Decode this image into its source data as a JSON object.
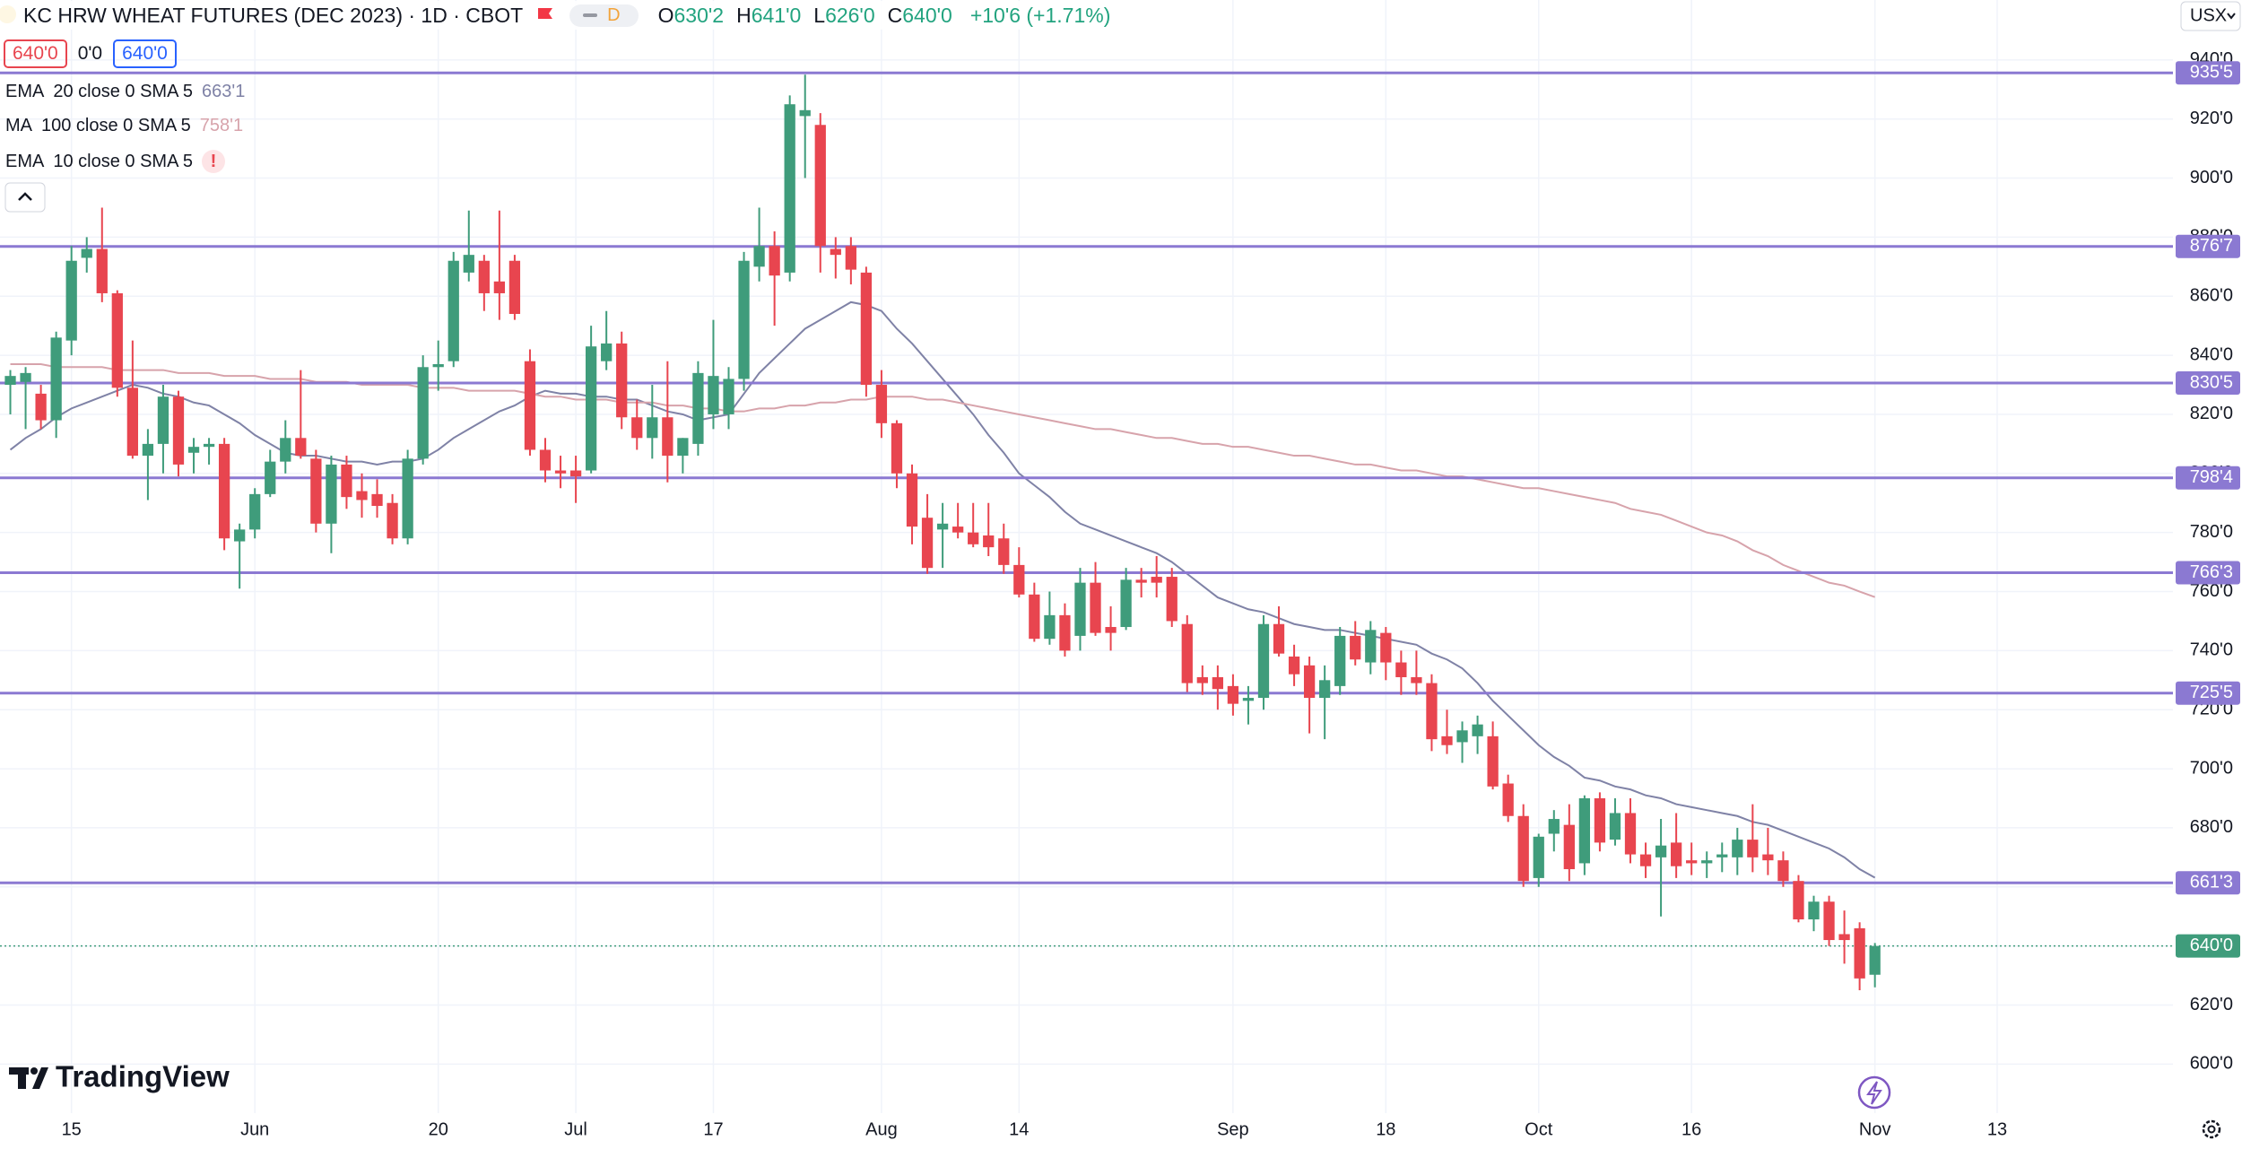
{
  "header": {
    "title": "KC HRW WHEAT FUTURES (DEC 2023) · 1D · CBOT",
    "interval_badge": "D",
    "ohlc": [
      {
        "key": "O",
        "value": "630'2"
      },
      {
        "key": "H",
        "value": "641'0"
      },
      {
        "key": "L",
        "value": "626'0"
      },
      {
        "key": "C",
        "value": "640'0"
      }
    ],
    "change": "+10'6 (+1.71%)",
    "sell_price": "640'0",
    "spread": "0'0",
    "buy_price": "640'0",
    "currency": "USX"
  },
  "footer": {
    "logo": "TradingView"
  },
  "chart_data": {
    "type": "candlestick",
    "categories": [
      null,
      null,
      null,
      null,
      "15",
      null,
      null,
      null,
      null,
      null,
      null,
      null,
      null,
      null,
      null,
      null,
      "Jun",
      null,
      null,
      null,
      null,
      null,
      null,
      null,
      null,
      null,
      null,
      null,
      "20",
      null,
      null,
      null,
      null,
      null,
      null,
      null,
      null,
      "Jul",
      null,
      null,
      null,
      null,
      null,
      null,
      null,
      null,
      "17",
      null,
      null,
      null,
      null,
      null,
      null,
      null,
      null,
      null,
      null,
      "Aug",
      null,
      null,
      null,
      null,
      null,
      null,
      null,
      null,
      "14",
      null,
      null,
      null,
      null,
      null,
      null,
      null,
      null,
      null,
      null,
      null,
      null,
      null,
      "Sep",
      null,
      null,
      null,
      null,
      null,
      null,
      null,
      null,
      null,
      "18",
      null,
      null,
      null,
      null,
      null,
      null,
      null,
      null,
      null,
      "Oct",
      null,
      null,
      null,
      null,
      null,
      null,
      null,
      null,
      null,
      "16",
      null,
      null,
      null,
      null,
      null,
      null,
      null,
      null,
      null,
      null,
      null,
      "Nov",
      null,
      null,
      null,
      null,
      null,
      null,
      null,
      "13",
      null,
      null,
      null,
      null,
      null,
      null,
      null,
      null,
      null,
      null,
      null
    ],
    "open": [
      830,
      831,
      827,
      818,
      845,
      873,
      876,
      861,
      829,
      806,
      810,
      826,
      807,
      809,
      810,
      777,
      781,
      793,
      804,
      812,
      805,
      783,
      803,
      794,
      793,
      790,
      778,
      805,
      836,
      838,
      868,
      872,
      865,
      872,
      838,
      808,
      801,
      801,
      801,
      838,
      844,
      819,
      812,
      819,
      806,
      810,
      820,
      820,
      832,
      870,
      877,
      868,
      921,
      918,
      876,
      877,
      868,
      830,
      817,
      800,
      785,
      781,
      782,
      780,
      779,
      778,
      769,
      759,
      744,
      752,
      745,
      763,
      748,
      748,
      764,
      765,
      765,
      749,
      731,
      731,
      728,
      723,
      724,
      749,
      738,
      735,
      724,
      728,
      745,
      736,
      746,
      736,
      731,
      729,
      711,
      709,
      711,
      711,
      695,
      684,
      663,
      678,
      681,
      668,
      690,
      676,
      685,
      671,
      670,
      675,
      669,
      668,
      670,
      670,
      676,
      671,
      669,
      662,
      649,
      655,
      644,
      646,
      630.25,
      null,
      null,
      null,
      null,
      null,
      null,
      null,
      null,
      null,
      null,
      null,
      null,
      null,
      null,
      null,
      null,
      null,
      null,
      null
    ],
    "high": [
      835,
      836,
      830,
      848,
      877,
      880,
      890,
      862,
      845,
      815,
      830,
      828,
      812,
      812,
      812,
      783,
      795,
      808,
      818,
      835,
      808,
      806,
      806,
      800,
      798,
      793,
      808,
      840,
      845,
      875,
      889,
      874,
      889,
      874,
      842,
      812,
      806,
      806,
      850,
      855,
      848,
      825,
      830,
      838,
      812,
      838,
      852,
      836,
      875,
      890,
      882,
      928,
      935,
      922,
      880,
      880,
      870,
      835,
      818,
      803,
      793,
      790,
      790,
      790,
      790,
      783,
      775,
      763,
      760,
      756,
      768,
      770,
      755,
      768,
      768,
      772,
      768,
      752,
      735,
      735,
      732,
      728,
      752,
      755,
      742,
      738,
      735,
      748,
      750,
      750,
      748,
      740,
      740,
      732,
      720,
      716,
      718,
      716,
      698,
      688,
      678,
      686,
      688,
      691,
      692,
      690,
      690,
      675,
      683,
      685,
      675,
      672,
      675,
      680,
      688,
      680,
      672,
      664,
      657,
      657,
      652,
      648,
      641,
      null,
      null,
      null,
      null,
      null,
      null,
      null,
      null,
      null,
      null,
      null,
      null,
      null,
      null,
      null,
      null,
      null,
      null,
      null
    ],
    "low": [
      820,
      815,
      815,
      812,
      840,
      868,
      858,
      826,
      805,
      791,
      800,
      799,
      800,
      803,
      774,
      761,
      778,
      792,
      800,
      805,
      780,
      773,
      788,
      785,
      785,
      776,
      776,
      803,
      828,
      836,
      865,
      855,
      852,
      852,
      806,
      797,
      795,
      790,
      800,
      835,
      815,
      808,
      805,
      797,
      800,
      806,
      815,
      815,
      828,
      865,
      850,
      865,
      900,
      868,
      866,
      864,
      826,
      812,
      795,
      776,
      766,
      768,
      778,
      775,
      772,
      766,
      758,
      743,
      742,
      738,
      740,
      745,
      740,
      747,
      758,
      758,
      748,
      726,
      725,
      720,
      718,
      715,
      720,
      738,
      728,
      712,
      710,
      725,
      735,
      732,
      730,
      725,
      725,
      706,
      705,
      702,
      705,
      693,
      682,
      660,
      660,
      672,
      662,
      664,
      672,
      674,
      668,
      663,
      650,
      663,
      664,
      663,
      665,
      664,
      665,
      664,
      660,
      648,
      645,
      640,
      634,
      625,
      626,
      null,
      null,
      null,
      null,
      null,
      null,
      null,
      null,
      null,
      null,
      null,
      null,
      null,
      null,
      null,
      null,
      null,
      null,
      null
    ],
    "close": [
      833,
      834,
      818,
      846,
      872,
      876,
      861,
      829,
      806,
      810,
      826,
      803,
      809,
      810,
      778,
      781,
      793,
      804,
      812,
      806,
      783,
      803,
      792,
      791,
      789,
      778,
      805,
      836,
      837,
      872,
      874,
      861,
      861,
      854,
      808,
      801,
      800,
      799,
      843,
      844,
      819,
      812,
      819,
      806,
      812,
      834,
      833,
      832,
      872,
      877,
      867,
      925,
      923,
      877,
      874,
      869,
      830,
      817,
      800,
      782,
      768,
      783,
      780,
      776,
      775,
      769,
      759,
      744,
      752,
      740,
      763,
      746,
      746,
      764,
      763,
      763,
      750,
      729,
      729,
      727,
      722,
      724,
      749,
      739,
      732,
      724,
      730,
      745,
      737,
      747,
      736,
      731,
      729,
      710,
      708,
      713,
      715,
      694,
      684,
      662,
      677,
      683,
      666,
      690,
      675,
      685,
      671,
      667,
      674,
      667,
      668,
      669,
      671,
      676,
      670,
      669,
      662,
      649,
      655,
      642,
      642,
      629,
      640,
      null,
      null,
      null,
      null,
      null,
      null,
      null,
      null,
      null,
      null,
      null,
      null,
      null,
      null,
      null,
      null,
      null,
      null,
      null
    ],
    "up_color": "#3f9c7b",
    "down_color": "#e8454f",
    "indicators": [
      {
        "name": "EMA",
        "params": "20 close 0 SMA 5",
        "value_label": "663'1",
        "color": "#7f82a6",
        "values": [
          808,
          812,
          815,
          819,
          822,
          824,
          826,
          828,
          830,
          829,
          827,
          826,
          824,
          823,
          820,
          817,
          813,
          810,
          807,
          806,
          806,
          805,
          804,
          804,
          803,
          804,
          804,
          805,
          808,
          812,
          815,
          818,
          821,
          823,
          826,
          828,
          827,
          827,
          826,
          826,
          825,
          825,
          823,
          821,
          820,
          818,
          819,
          820,
          827,
          834,
          839,
          844,
          849,
          852,
          855,
          858,
          857,
          855,
          849,
          844,
          838,
          832,
          826,
          820,
          813,
          807,
          800,
          796,
          792,
          787,
          783,
          781,
          779,
          777,
          775,
          773,
          770,
          766,
          762,
          758,
          756,
          754,
          753,
          751,
          749,
          748,
          747,
          747,
          746,
          745,
          744,
          743,
          742,
          739,
          737,
          734,
          729,
          723,
          718,
          713,
          708,
          704,
          701,
          697,
          696,
          694,
          693,
          691,
          690,
          688,
          687,
          686,
          685,
          684,
          682,
          681,
          679,
          677,
          675,
          673,
          670,
          666,
          663.125,
          null,
          null,
          null,
          null,
          null,
          null,
          null,
          null,
          null,
          null,
          null,
          null,
          null,
          null,
          null,
          null,
          null,
          null,
          null
        ]
      },
      {
        "name": "MA",
        "params": "100 close 0 SMA 5",
        "value_label": "758'1",
        "color": "#d7a3ab",
        "values": [
          837,
          837,
          837,
          836,
          836,
          836,
          836,
          835,
          835,
          835,
          835,
          834,
          834,
          834,
          833,
          833,
          833,
          832,
          832,
          832,
          831,
          831,
          831,
          830,
          830,
          830,
          830,
          829,
          829,
          829,
          828,
          828,
          828,
          828,
          827,
          826,
          826,
          825,
          825,
          825,
          824,
          824,
          824,
          823,
          823,
          822,
          822,
          821,
          821,
          822,
          822,
          823,
          823,
          824,
          824,
          825,
          825,
          826,
          826,
          826,
          825,
          825,
          824,
          823,
          822,
          821,
          820,
          819,
          818,
          817,
          816,
          815,
          815,
          814,
          813,
          812,
          812,
          811,
          810,
          810,
          809,
          809,
          808,
          807,
          806,
          806,
          805,
          804,
          803,
          803,
          802,
          801,
          801,
          800,
          799,
          799,
          798,
          797,
          796,
          795,
          795,
          794,
          793,
          792,
          791,
          790,
          788,
          787,
          786,
          784,
          782,
          780,
          779,
          777,
          774,
          772,
          769,
          767,
          765,
          763,
          762,
          760,
          758.125,
          null,
          null,
          null,
          null,
          null,
          null,
          null,
          null,
          null,
          null,
          null,
          null,
          null,
          null,
          null,
          null,
          null,
          null,
          null
        ]
      },
      {
        "name": "EMA",
        "params": "10 close 0 SMA 5",
        "status": "!"
      }
    ],
    "levels": [
      {
        "value": 935.625,
        "label": "935'5"
      },
      {
        "value": 876.875,
        "label": "876'7"
      },
      {
        "value": 830.625,
        "label": "830'5"
      },
      {
        "value": 798.5,
        "label": "798'4"
      },
      {
        "value": 766.375,
        "label": "766'3"
      },
      {
        "value": 725.625,
        "label": "725'5"
      },
      {
        "value": 661.375,
        "label": "661'3"
      }
    ],
    "level_color": "#8b79d2",
    "last_price": {
      "value": 640,
      "label": "640'0"
    },
    "last_price_color": "#3f9c7b",
    "ylim": [
      583.4,
      960.3
    ],
    "yticks": [
      {
        "value": 600,
        "label": "600'0"
      },
      {
        "value": 620,
        "label": "620'0"
      },
      {
        "value": 640,
        "label": "640'0"
      },
      {
        "value": 660,
        "label": "660'0"
      },
      {
        "value": 680,
        "label": "680'0"
      },
      {
        "value": 700,
        "label": "700'0"
      },
      {
        "value": 720,
        "label": "720'0"
      },
      {
        "value": 740,
        "label": "740'0"
      },
      {
        "value": 760,
        "label": "760'0"
      },
      {
        "value": 780,
        "label": "780'0"
      },
      {
        "value": 800,
        "label": "800'0"
      },
      {
        "value": 820,
        "label": "820'0"
      },
      {
        "value": 840,
        "label": "840'0"
      },
      {
        "value": 860,
        "label": "860'0"
      },
      {
        "value": 880,
        "label": "880'0"
      },
      {
        "value": 900,
        "label": "900'0"
      },
      {
        "value": 920,
        "label": "920'0"
      },
      {
        "value": 940,
        "label": "940'0"
      }
    ],
    "grid": true
  }
}
